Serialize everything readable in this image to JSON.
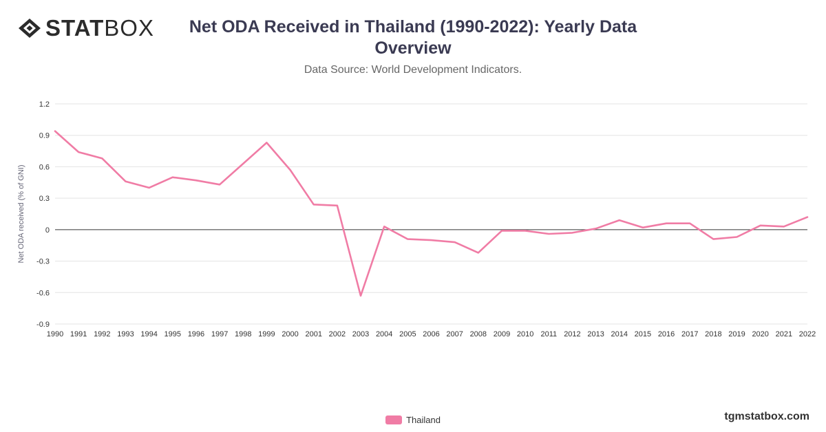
{
  "brand": {
    "logo_bold": "STAT",
    "logo_light": "BOX",
    "watermark": "tgmstatbox.com"
  },
  "header": {
    "title": "Net ODA Received in Thailand (1990-2022): Yearly Data Overview",
    "subtitle": "Data Source: World Development Indicators."
  },
  "chart_data": {
    "type": "line",
    "title": "Net ODA Received in Thailand (1990-2022): Yearly Data Overview",
    "subtitle": "Data Source: World Development Indicators.",
    "xlabel": "",
    "ylabel": "Net ODA received (% of GNI)",
    "ylim": [
      -0.9,
      1.2
    ],
    "yticks": [
      1.2,
      0.9,
      0.6,
      0.3,
      0,
      -0.3,
      -0.6,
      -0.9
    ],
    "grid": true,
    "legend": "bottom-center",
    "x": [
      "1990",
      "1991",
      "1992",
      "1993",
      "1994",
      "1995",
      "1996",
      "1997",
      "1998",
      "1999",
      "2000",
      "2001",
      "2002",
      "2003",
      "2004",
      "2005",
      "2006",
      "2007",
      "2008",
      "2009",
      "2010",
      "2011",
      "2012",
      "2013",
      "2014",
      "2015",
      "2016",
      "2017",
      "2018",
      "2019",
      "2020",
      "2021",
      "2022"
    ],
    "series": [
      {
        "name": "Thailand",
        "color": "#f07ca5",
        "values": [
          0.94,
          0.74,
          0.68,
          0.46,
          0.4,
          0.5,
          0.47,
          0.43,
          0.63,
          0.83,
          0.57,
          0.24,
          0.23,
          -0.63,
          0.03,
          -0.09,
          -0.1,
          -0.12,
          -0.22,
          -0.01,
          -0.01,
          -0.04,
          -0.03,
          0.01,
          0.09,
          0.02,
          0.06,
          0.06,
          -0.09,
          -0.07,
          0.04,
          0.03,
          0.12
        ]
      }
    ]
  }
}
